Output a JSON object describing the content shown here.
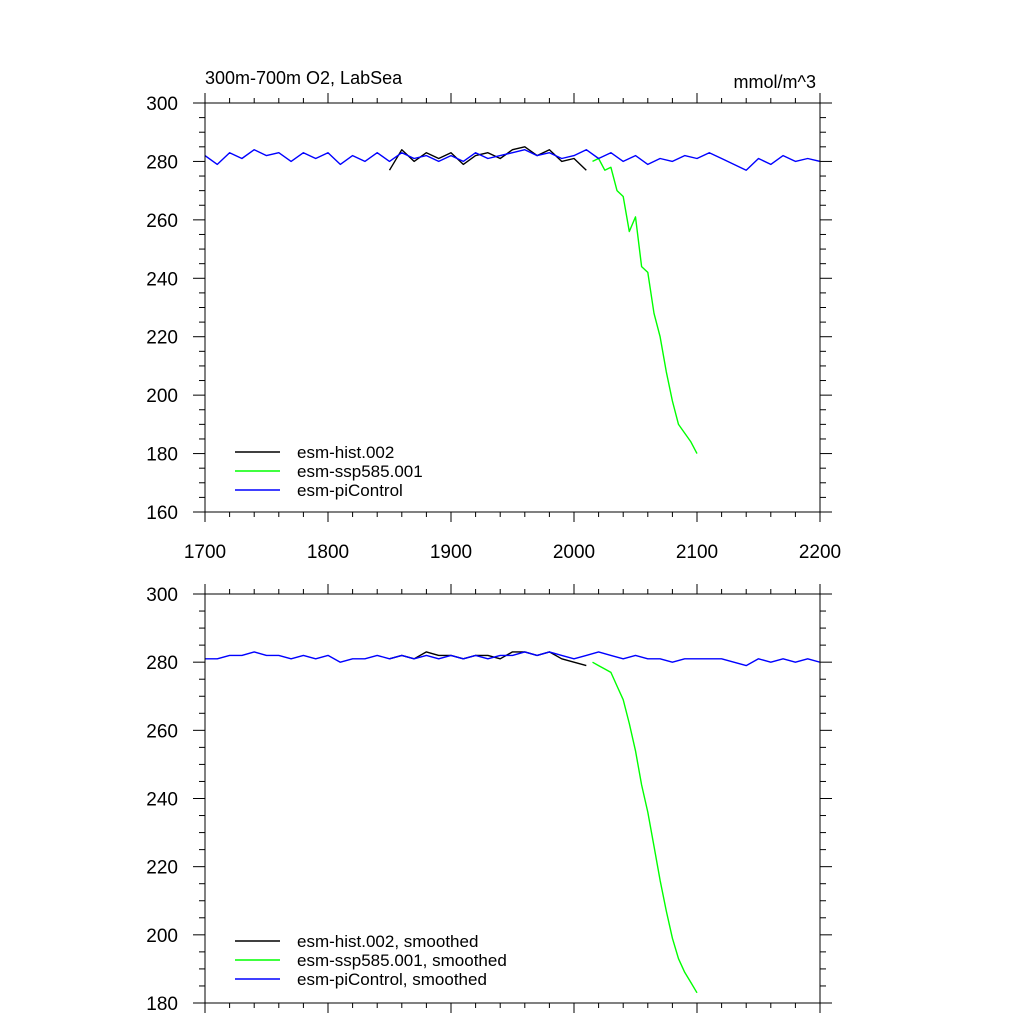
{
  "chart_data": [
    {
      "type": "line",
      "title": "300m-700m O2, LabSea",
      "units": "mmol/m^3",
      "xlim": [
        1700,
        2200
      ],
      "ylim": [
        160,
        300
      ],
      "xticks": [
        1700,
        1800,
        1900,
        2000,
        2100,
        2200
      ],
      "yticks": [
        160,
        180,
        200,
        220,
        240,
        260,
        280,
        300
      ],
      "show_xtick_labels": true,
      "grid": false,
      "legend_position": "bottom-left",
      "colors": {
        "esm-hist.002": "#000000",
        "esm-ssp585.001": "#00ff00",
        "esm-piControl": "#0000ff"
      },
      "series": [
        {
          "name": "esm-hist.002",
          "color": "#000000",
          "x": [
            1850,
            1860,
            1870,
            1880,
            1890,
            1900,
            1910,
            1920,
            1930,
            1940,
            1950,
            1960,
            1970,
            1980,
            1990,
            2000,
            2010
          ],
          "y": [
            277,
            284,
            280,
            283,
            281,
            283,
            279,
            282,
            283,
            281,
            284,
            285,
            282,
            284,
            280,
            281,
            277
          ]
        },
        {
          "name": "esm-ssp585.001",
          "color": "#00ff00",
          "x": [
            2015,
            2020,
            2025,
            2030,
            2035,
            2040,
            2045,
            2050,
            2055,
            2060,
            2065,
            2070,
            2075,
            2080,
            2085,
            2090,
            2095,
            2100
          ],
          "y": [
            280,
            281,
            277,
            278,
            270,
            268,
            256,
            261,
            244,
            242,
            228,
            220,
            208,
            198,
            190,
            187,
            184,
            180
          ]
        },
        {
          "name": "esm-piControl",
          "color": "#0000ff",
          "x": [
            1700,
            1710,
            1720,
            1730,
            1740,
            1750,
            1760,
            1770,
            1780,
            1790,
            1800,
            1810,
            1820,
            1830,
            1840,
            1850,
            1860,
            1870,
            1880,
            1890,
            1900,
            1910,
            1920,
            1930,
            1940,
            1950,
            1960,
            1970,
            1980,
            1990,
            2000,
            2010,
            2020,
            2030,
            2040,
            2050,
            2060,
            2070,
            2080,
            2090,
            2100,
            2110,
            2120,
            2130,
            2140,
            2150,
            2160,
            2170,
            2180,
            2190,
            2200
          ],
          "y": [
            282,
            279,
            283,
            281,
            284,
            282,
            283,
            280,
            283,
            281,
            283,
            279,
            282,
            280,
            283,
            280,
            283,
            281,
            282,
            280,
            282,
            280,
            283,
            281,
            282,
            283,
            284,
            282,
            283,
            281,
            282,
            284,
            281,
            283,
            280,
            282,
            279,
            281,
            280,
            282,
            281,
            283,
            281,
            279,
            277,
            281,
            279,
            282,
            280,
            281,
            280
          ]
        }
      ]
    },
    {
      "type": "line",
      "title": "",
      "xlim": [
        1700,
        2200
      ],
      "ylim": [
        180,
        300
      ],
      "xticks": [
        1700,
        1800,
        1900,
        2000,
        2100,
        2200
      ],
      "yticks": [
        180,
        200,
        220,
        240,
        260,
        280,
        300
      ],
      "show_xtick_labels": false,
      "grid": false,
      "legend_position": "bottom-left",
      "colors": {
        "esm-hist.002, smoothed": "#000000",
        "esm-ssp585.001, smoothed": "#00ff00",
        "esm-piControl, smoothed": "#0000ff"
      },
      "series": [
        {
          "name": "esm-hist.002, smoothed",
          "color": "#000000",
          "x": [
            1850,
            1860,
            1870,
            1880,
            1890,
            1900,
            1910,
            1920,
            1930,
            1940,
            1950,
            1960,
            1970,
            1980,
            1990,
            2000,
            2010
          ],
          "y": [
            281,
            282,
            281,
            283,
            282,
            282,
            281,
            282,
            282,
            281,
            283,
            283,
            282,
            283,
            281,
            280,
            279
          ]
        },
        {
          "name": "esm-ssp585.001, smoothed",
          "color": "#00ff00",
          "x": [
            2015,
            2020,
            2025,
            2030,
            2035,
            2040,
            2045,
            2050,
            2055,
            2060,
            2065,
            2070,
            2075,
            2080,
            2085,
            2090,
            2095,
            2100
          ],
          "y": [
            280,
            279,
            278,
            277,
            273,
            269,
            262,
            254,
            244,
            236,
            226,
            216,
            207,
            199,
            193,
            189,
            186,
            183
          ]
        },
        {
          "name": "esm-piControl, smoothed",
          "color": "#0000ff",
          "x": [
            1700,
            1710,
            1720,
            1730,
            1740,
            1750,
            1760,
            1770,
            1780,
            1790,
            1800,
            1810,
            1820,
            1830,
            1840,
            1850,
            1860,
            1870,
            1880,
            1890,
            1900,
            1910,
            1920,
            1930,
            1940,
            1950,
            1960,
            1970,
            1980,
            1990,
            2000,
            2010,
            2020,
            2030,
            2040,
            2050,
            2060,
            2070,
            2080,
            2090,
            2100,
            2110,
            2120,
            2130,
            2140,
            2150,
            2160,
            2170,
            2180,
            2190,
            2200
          ],
          "y": [
            281,
            281,
            282,
            282,
            283,
            282,
            282,
            281,
            282,
            281,
            282,
            280,
            281,
            281,
            282,
            281,
            282,
            281,
            282,
            281,
            282,
            281,
            282,
            281,
            282,
            282,
            283,
            282,
            283,
            282,
            281,
            282,
            283,
            282,
            281,
            282,
            281,
            281,
            280,
            281,
            281,
            281,
            281,
            280,
            279,
            281,
            280,
            281,
            280,
            281,
            280
          ]
        }
      ]
    }
  ]
}
